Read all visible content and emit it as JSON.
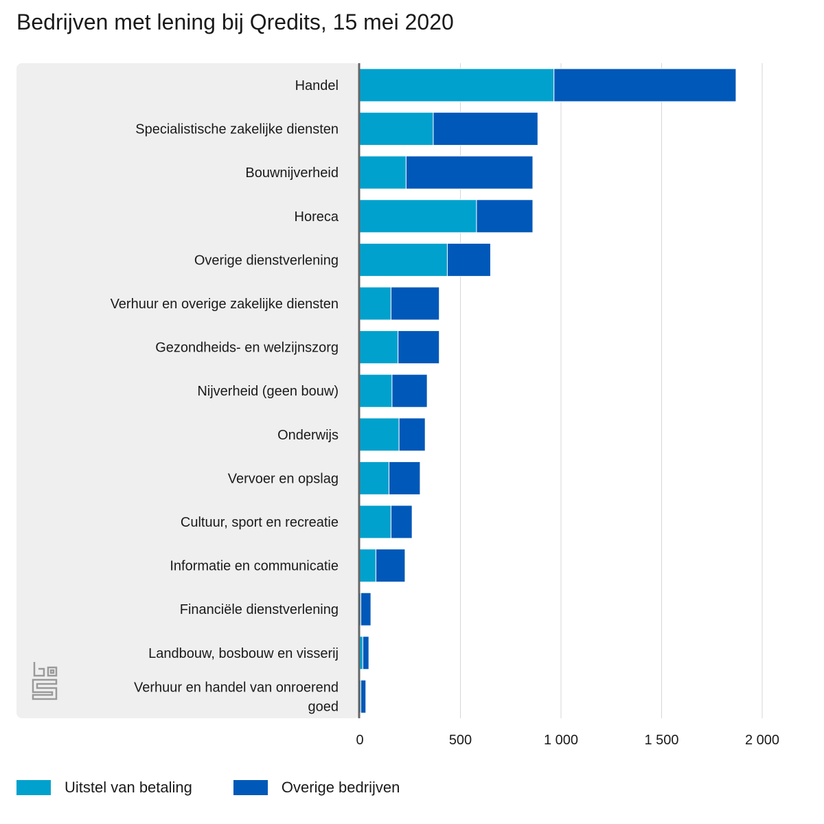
{
  "title": "Bedrijven met lening bij Qredits, 15 mei 2020",
  "colors": {
    "uitstel": "#00a1cd",
    "overige": "#0058b8",
    "panel": "#efefef",
    "grid": "#d6d6d6",
    "axis": "#666666"
  },
  "logo": {
    "icon": "cbs-logo-icon",
    "text": "cbs"
  },
  "chart_data": {
    "type": "bar",
    "orientation": "horizontal",
    "stacked": true,
    "title": "Bedrijven met lening bij Qredits, 15 mei 2020",
    "categories": [
      [
        "Handel"
      ],
      [
        "Specialistische zakelijke diensten"
      ],
      [
        "Bouwnijverheid"
      ],
      [
        "Horeca"
      ],
      [
        "Overige dienstverlening"
      ],
      [
        "Verhuur en overige zakelijke diensten"
      ],
      [
        "Gezondheids- en welzijnszorg"
      ],
      [
        "Nijverheid (geen bouw)"
      ],
      [
        "Onderwijs"
      ],
      [
        "Vervoer en opslag"
      ],
      [
        "Cultuur, sport en recreatie"
      ],
      [
        "Informatie en communicatie"
      ],
      [
        "Financiële dienstverlening"
      ],
      [
        "Landbouw, bosbouw en visserij"
      ],
      [
        "Verhuur en handel van onroerend",
        "goed"
      ]
    ],
    "series": [
      {
        "name": "Uitstel van betaling",
        "color": "#00a1cd",
        "values": [
          965,
          365,
          230,
          580,
          435,
          155,
          190,
          160,
          195,
          145,
          155,
          80,
          5,
          15,
          5
        ]
      },
      {
        "name": "Overige bedrijven",
        "color": "#0058b8",
        "values": [
          905,
          520,
          630,
          280,
          215,
          240,
          205,
          175,
          130,
          155,
          105,
          145,
          50,
          30,
          25
        ]
      }
    ],
    "xlim": [
      0,
      2000
    ],
    "xticks": [
      0,
      500,
      1000,
      1500,
      2000
    ],
    "xtick_labels": [
      "0",
      "500",
      "1 000",
      "1 500",
      "2 000"
    ],
    "grid": true,
    "legend_position": "bottom-left"
  }
}
